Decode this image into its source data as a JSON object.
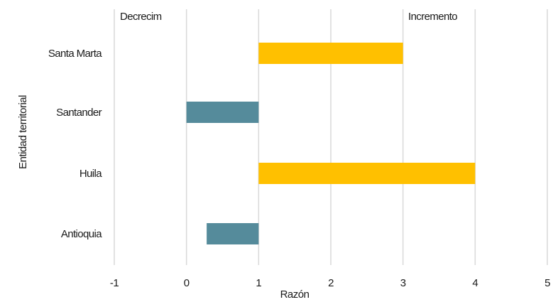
{
  "chart_data": {
    "type": "bar",
    "orientation": "horizontal",
    "categories": [
      "Santa Marta",
      "Santander",
      "Huila",
      "Antioquia"
    ],
    "bars": [
      {
        "category": "Santa Marta",
        "start": 1,
        "end": 3.0,
        "direction": "increase"
      },
      {
        "category": "Santander",
        "start": 1,
        "end": 0.0,
        "direction": "decrease"
      },
      {
        "category": "Huila",
        "start": 1,
        "end": 4.0,
        "direction": "increase"
      },
      {
        "category": "Antioquia",
        "start": 1,
        "end": 0.28,
        "direction": "decrease"
      }
    ],
    "xlabel": "Razón",
    "ylabel": "Entidad territorial",
    "xlim": [
      -1,
      5
    ],
    "xticks": [
      "-1",
      "0",
      "1",
      "2",
      "3",
      "4",
      "5"
    ],
    "annotations": {
      "decrease": "Decrecim",
      "increase": "Incremento"
    },
    "grid": "vertical",
    "colors": {
      "increase": "#ffc000",
      "decrease": "#558b9b",
      "grid": "#d9d9d9"
    }
  }
}
